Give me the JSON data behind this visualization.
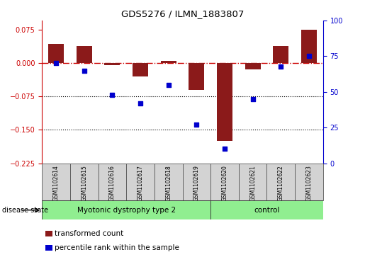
{
  "title": "GDS5276 / ILMN_1883807",
  "samples": [
    "GSM1102614",
    "GSM1102615",
    "GSM1102616",
    "GSM1102617",
    "GSM1102618",
    "GSM1102619",
    "GSM1102620",
    "GSM1102621",
    "GSM1102622",
    "GSM1102623"
  ],
  "bar_values": [
    0.042,
    0.038,
    -0.005,
    -0.03,
    0.005,
    -0.06,
    -0.175,
    -0.015,
    0.038,
    0.075
  ],
  "dot_values": [
    70,
    65,
    48,
    42,
    55,
    27,
    10,
    45,
    68,
    75
  ],
  "disease_groups": [
    {
      "label": "Myotonic dystrophy type 2",
      "start": 0,
      "end": 5,
      "color": "#90EE90"
    },
    {
      "label": "control",
      "start": 6,
      "end": 9,
      "color": "#90EE90"
    }
  ],
  "ylim_left": [
    -0.225,
    0.095
  ],
  "ylim_right": [
    0,
    100
  ],
  "yticks_left": [
    0.075,
    0,
    -0.075,
    -0.15,
    -0.225
  ],
  "yticks_right": [
    100,
    75,
    50,
    25,
    0
  ],
  "bar_color": "#8B1A1A",
  "dot_color": "#0000CD",
  "hline_color": "#CC0000",
  "dotted_lines": [
    -0.075,
    -0.15
  ],
  "disease_state_label": "disease state",
  "legend_items": [
    {
      "label": "transformed count",
      "color": "#8B1A1A"
    },
    {
      "label": "percentile rank within the sample",
      "color": "#0000CD"
    }
  ],
  "background_color": "#ffffff",
  "left_spine_color": "#CC0000",
  "right_spine_color": "#0000CD"
}
